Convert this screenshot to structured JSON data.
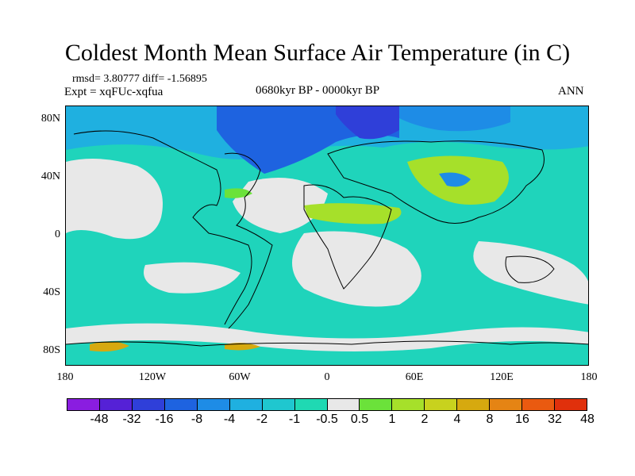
{
  "title": "Coldest Month Mean Surface Air Temperature (in C)",
  "stats": "rmsd= 3.80777 diff= -1.56895",
  "experiment": "Expt = xqFUc-xqfua",
  "period": "0680kyr BP - 0000kyr BP",
  "season": "ANN",
  "map": {
    "projection": "cylindrical-equidistant",
    "lon_range": [
      -180,
      180
    ],
    "lat_range": [
      -90,
      90
    ],
    "lat_ticks": [
      "80N",
      "40N",
      "0",
      "40S",
      "80S"
    ],
    "lon_ticks": [
      "180",
      "120W",
      "60W",
      "0",
      "60E",
      "120E",
      "180"
    ],
    "background_color": "#1fd4bb",
    "coastlines": true
  },
  "colorbar": {
    "labels": [
      "-48",
      "-32",
      "-16",
      "-8",
      "-4",
      "-2",
      "-1",
      "-0.5",
      "0.5",
      "1",
      "2",
      "4",
      "8",
      "16",
      "32",
      "48"
    ],
    "colors": [
      "#8a1de0",
      "#5521d6",
      "#2f3fd9",
      "#1e63e0",
      "#1e8ce6",
      "#1fb0e0",
      "#1fc7cf",
      "#1fd9b3",
      "#e8e8e8",
      "#6be23a",
      "#a6e02a",
      "#c8d21e",
      "#d6a90f",
      "#e58414",
      "#ea5a10",
      "#e0300c"
    ]
  }
}
